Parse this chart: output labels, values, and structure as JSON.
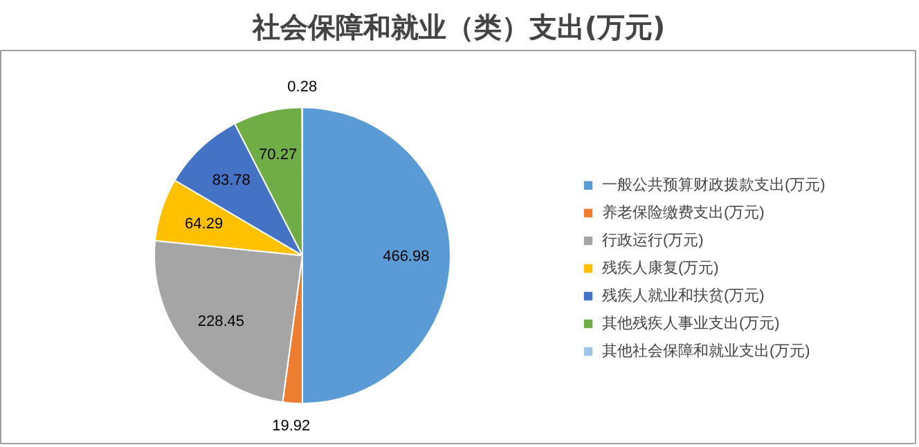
{
  "chart_data": {
    "type": "pie",
    "title": "社会保障和就业（类）支出(万元)",
    "categories": [
      "一般公共预算财政拨款支出(万元)",
      "养老保险缴费支出(万元)",
      "行政运行(万元)",
      "残疾人康复(万元)",
      "残疾人就业和扶贫(万元)",
      "其他残疾人事业支出(万元)",
      "其他社会保障和就业支出(万元)"
    ],
    "values": [
      466.98,
      19.92,
      228.45,
      64.29,
      83.78,
      70.27,
      0.28
    ],
    "colors": [
      "#5b9bd5",
      "#ed7d31",
      "#a5a5a5",
      "#ffc000",
      "#4472c4",
      "#70ad47",
      "#9dc3e6"
    ],
    "data_labels": true,
    "legend": "right"
  }
}
